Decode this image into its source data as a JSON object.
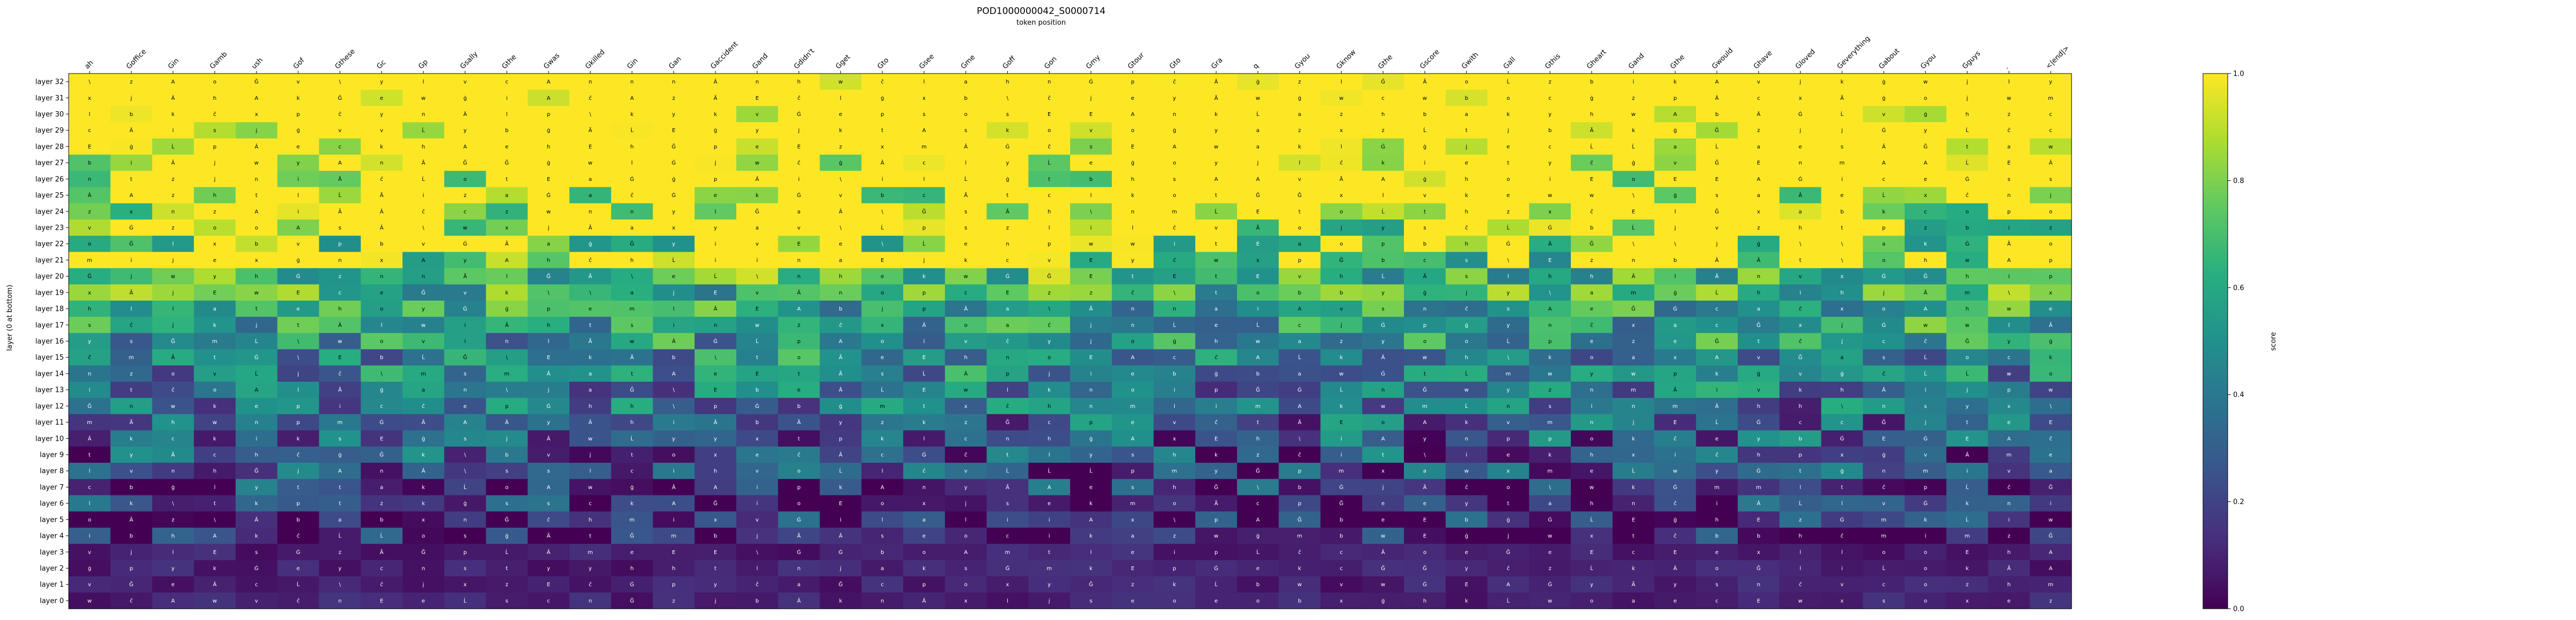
{
  "chart_data": {
    "type": "heatmap",
    "title": "POD1000000042_S0000714",
    "subtitle": "token position",
    "ylabel": "layer (0 at bottom)",
    "colorbar": {
      "label": "score",
      "range": [
        0.0,
        1.0
      ],
      "ticks": [
        "0.0",
        "0.2",
        "0.4",
        "0.6",
        "0.8",
        "1.0"
      ],
      "colormap": "viridis"
    },
    "x_tokens": [
      "ah",
      "Goffice",
      "Gin",
      "Gamb",
      "ush",
      "Gof",
      "Gthese",
      "Gc",
      "Gp",
      "Gsally",
      "Gthe",
      "Gwas",
      "Gkilled",
      "Gin",
      "Gan",
      "Gaccident",
      "Gand",
      "Gdidn't",
      "Gget",
      "Gto",
      "Gsee",
      "Gme",
      "Goff",
      "Gon",
      "Gmy",
      "Gtour",
      "Gto",
      "Gra",
      "q",
      "Gyou",
      "Gknow",
      "Gthe",
      "Gscore",
      "Gwith",
      "Gall",
      "Gthis",
      "Gheart",
      "Gand",
      "Gthe",
      "Gwould",
      "Ghave",
      "Gloved",
      "Geverything",
      "Gabout",
      "Gyou",
      "Gguys",
      ".",
      "<|end|>"
    ],
    "y_labels": [
      "layer 32",
      "layer 31",
      "layer 30",
      "layer 29",
      "layer 28",
      "layer 27",
      "layer 26",
      "layer 25",
      "layer 24",
      "layer 23",
      "layer 22",
      "layer 21",
      "layer 20",
      "layer 19",
      "layer 18",
      "layer 17",
      "layer 16",
      "layer 15",
      "layer 14",
      "layer 13",
      "layer 12",
      "layer 11",
      "layer 10",
      "layer 9",
      "layer 8",
      "layer 7",
      "layer 6",
      "layer 5",
      "layer 4",
      "layer 3",
      "layer 2",
      "layer 1",
      "layer 0"
    ],
    "glyphs": [
      "a",
      "o",
      "e",
      "i",
      "E",
      "Ã",
      "Â",
      "A",
      "Ğ",
      "ġ",
      "Ĺ",
      "Ġ",
      "p",
      "b",
      "z",
      "n",
      "t",
      "s",
      "k",
      "m",
      "w",
      "y",
      "l",
      "ĉ",
      "\\",
      "c",
      "h",
      "j",
      "v",
      "x"
    ],
    "seed": 714
  }
}
